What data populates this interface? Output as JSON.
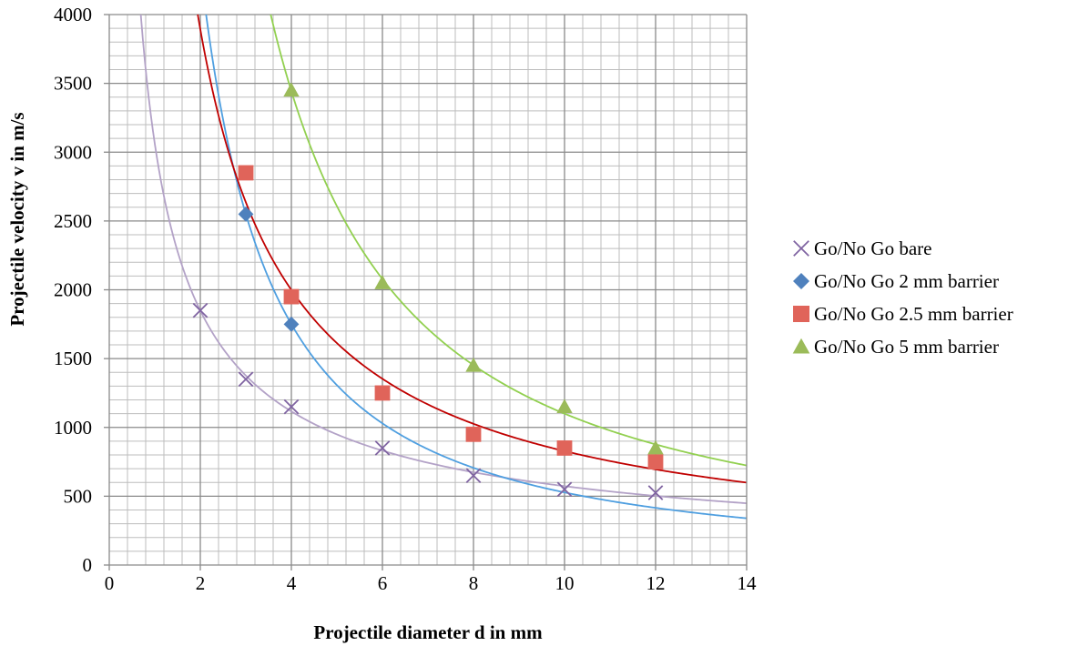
{
  "chart_data": {
    "type": "scatter",
    "title": "",
    "xlabel": "Projectile diameter d in mm",
    "ylabel": "Projectile velocity v in m/s",
    "xlim": [
      0,
      14
    ],
    "ylim": [
      0,
      4000
    ],
    "xticks": [
      "0",
      "2",
      "4",
      "6",
      "8",
      "10",
      "12",
      "14"
    ],
    "yticks": [
      "0",
      "500",
      "1000",
      "1500",
      "2000",
      "2500",
      "3000",
      "3500",
      "4000"
    ],
    "grid": true,
    "legend_position": "right",
    "trendline": "power",
    "series": [
      {
        "name": "Go/No Go bare",
        "marker": "x",
        "color": "#8064A2",
        "trend_color": "#B3A2C7",
        "x": [
          2,
          3,
          4,
          6,
          8,
          10,
          12
        ],
        "y": [
          1850,
          1350,
          1150,
          850,
          650,
          550,
          525
        ]
      },
      {
        "name": "Go/No Go 2 mm barrier",
        "marker": "diamond",
        "color": "#4F81BD",
        "trend_color": "#4F9FE0",
        "x": [
          3,
          4
        ],
        "y": [
          2550,
          1750
        ]
      },
      {
        "name": "Go/No Go 2.5 mm barrier",
        "marker": "square",
        "color": "#E0645A",
        "trend_color": "#C00000",
        "x": [
          3,
          4,
          6,
          8,
          10,
          12
        ],
        "y": [
          2850,
          1950,
          1250,
          950,
          850,
          750
        ]
      },
      {
        "name": "Go/No Go 5 mm barrier",
        "marker": "triangle",
        "color": "#9BBB59",
        "trend_color": "#92D050",
        "x": [
          4,
          6,
          8,
          10,
          12
        ],
        "y": [
          3450,
          2050,
          1450,
          1150,
          850
        ]
      }
    ]
  }
}
